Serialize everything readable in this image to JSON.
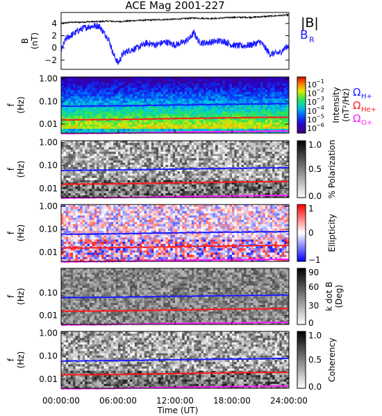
{
  "title": "ACE Mag 2001-227",
  "colors": {
    "b_total": "#000000",
    "b_r": "#1a1aff",
    "omega_h": "#1a1aff",
    "omega_he": "#ff1a1a",
    "omega_o": "#ff19ff"
  },
  "chart_data": [
    {
      "type": "line",
      "panel": "field",
      "ylabel_line1": "B",
      "ylabel_line2": "(nT)",
      "ylim": [
        -3.5,
        5.8
      ],
      "yticks": [
        "4",
        "2",
        "0",
        "−2"
      ],
      "ytick_values": [
        4,
        2,
        0,
        -2
      ],
      "legend": [
        {
          "label": "|B|",
          "color": "#000000"
        },
        {
          "label": "B",
          "sub": "R",
          "color": "#1a1aff"
        }
      ],
      "series": [
        {
          "key": "b_total",
          "x_hours": [
            0,
            1,
            2,
            3,
            4,
            5,
            6,
            8,
            10,
            12,
            14,
            16,
            18,
            20,
            21,
            22,
            23,
            24
          ],
          "values": [
            4.0,
            4.2,
            4.2,
            4.3,
            4.3,
            4.4,
            4.3,
            4.5,
            4.6,
            4.7,
            4.9,
            4.8,
            5.0,
            5.0,
            5.1,
            5.2,
            5.3,
            5.4
          ]
        },
        {
          "key": "b_r",
          "x_hours": [
            0,
            0.5,
            1,
            1.5,
            2,
            2.5,
            3,
            3.5,
            4,
            4.5,
            5,
            5.5,
            6,
            6.5,
            7,
            8,
            9,
            10,
            11,
            12,
            13,
            13.5,
            14,
            14.5,
            15,
            16,
            17,
            18,
            19,
            20,
            21,
            21.5,
            22,
            23,
            24
          ],
          "values": [
            -0.5,
            1.5,
            2.0,
            2.5,
            3.0,
            3.3,
            3.5,
            3.6,
            3.6,
            2.5,
            1.5,
            -1.0,
            -2.5,
            -1.0,
            -0.5,
            0.0,
            0.8,
            0.5,
            1.0,
            0.5,
            1.0,
            1.5,
            2.5,
            1.0,
            0.8,
            1.0,
            1.2,
            0.5,
            0.3,
            0.5,
            1.0,
            0.0,
            -1.0,
            -0.8,
            0.5
          ]
        }
      ]
    },
    {
      "type": "heatmap",
      "panel": "intensity",
      "ylabel_line1": "f",
      "ylabel_line2": "(Hz)",
      "yscale": "log",
      "ylim": [
        0.004,
        1.2
      ],
      "yticks": [
        "1.00",
        "0.10",
        "0.01"
      ],
      "ytick_values": [
        1,
        0.1,
        0.01
      ],
      "colorbar": {
        "label": "Intensity",
        "unit": "(nT²/Hz)",
        "scale": "log",
        "tick_base": "10",
        "tick_exponents": [
          "−1",
          "−2",
          "−3",
          "−4",
          "−5",
          "−6"
        ]
      },
      "legend": [
        {
          "label": "Ω",
          "sub": "H+",
          "color": "#1a1aff"
        },
        {
          "label": "Ω",
          "sub": "He+",
          "color": "#ff1a1a"
        },
        {
          "label": "Ω",
          "sub": "O+",
          "color": "#ff19ff"
        }
      ]
    },
    {
      "type": "heatmap",
      "panel": "polarization",
      "ylabel_line1": "f",
      "ylabel_line2": "(Hz)",
      "yscale": "log",
      "ylim": [
        0.004,
        1.2
      ],
      "yticks": [
        "1.00",
        "0.10",
        "0.01"
      ],
      "ytick_values": [
        1,
        0.1,
        0.01
      ],
      "colorbar": {
        "label": "% Polarization",
        "ticks": [
          "1.0",
          "0.5",
          "0.0"
        ],
        "tick_values": [
          1.0,
          0.5,
          0.0
        ]
      }
    },
    {
      "type": "heatmap",
      "panel": "ellipticity",
      "ylabel_line1": "f",
      "ylabel_line2": "(Hz)",
      "yscale": "log",
      "ylim": [
        0.004,
        1.2
      ],
      "yticks": [
        "1.00",
        "0.10",
        "0.01"
      ],
      "ytick_values": [
        1,
        0.1,
        0.01
      ],
      "colorbar": {
        "label": "Ellipticity",
        "ticks": [
          "1",
          "0",
          "−1"
        ],
        "tick_values": [
          1,
          0,
          -1
        ]
      }
    },
    {
      "type": "heatmap",
      "panel": "k_dot_b",
      "ylabel_line1": "f",
      "ylabel_line2": "(Hz)",
      "yscale": "log",
      "ylim": [
        0.004,
        1.2
      ],
      "yticks": [
        "0.10",
        "0.01"
      ],
      "ytick_values": [
        0.1,
        0.01
      ],
      "colorbar": {
        "label": "k dot B",
        "unit": "(Deg)",
        "ticks": [
          "90",
          "60",
          "30",
          "0"
        ],
        "tick_values": [
          90,
          60,
          30,
          0
        ]
      }
    },
    {
      "type": "heatmap",
      "panel": "coherency",
      "ylabel_line1": "f",
      "ylabel_line2": "(Hz)",
      "yscale": "log",
      "ylim": [
        0.004,
        1.2
      ],
      "yticks": [
        "1.00",
        "0.10",
        "0.01"
      ],
      "ytick_values": [
        1,
        0.1,
        0.01
      ],
      "colorbar": {
        "label": "Coherency",
        "ticks": [
          "1.0",
          "0.5",
          "0.0"
        ],
        "tick_values": [
          1.0,
          0.5,
          0.0
        ]
      }
    }
  ],
  "gyrofrequencies_hz": {
    "x_hours": [
      0,
      6,
      12,
      18,
      24
    ],
    "h_plus": [
      0.061,
      0.064,
      0.07,
      0.075,
      0.08
    ],
    "he_plus": [
      0.0153,
      0.016,
      0.0175,
      0.019,
      0.02
    ],
    "o_plus": [
      0.0038,
      0.004,
      0.0044,
      0.0047,
      0.005
    ]
  },
  "x_axis": {
    "label": "Time (UT)",
    "xlim_hours": [
      0,
      24
    ],
    "ticks": [
      "00:00:00",
      "06:00:00",
      "12:00:00",
      "18:00:00",
      "24:00:00"
    ],
    "tick_hours": [
      0,
      6,
      12,
      18,
      24
    ]
  }
}
